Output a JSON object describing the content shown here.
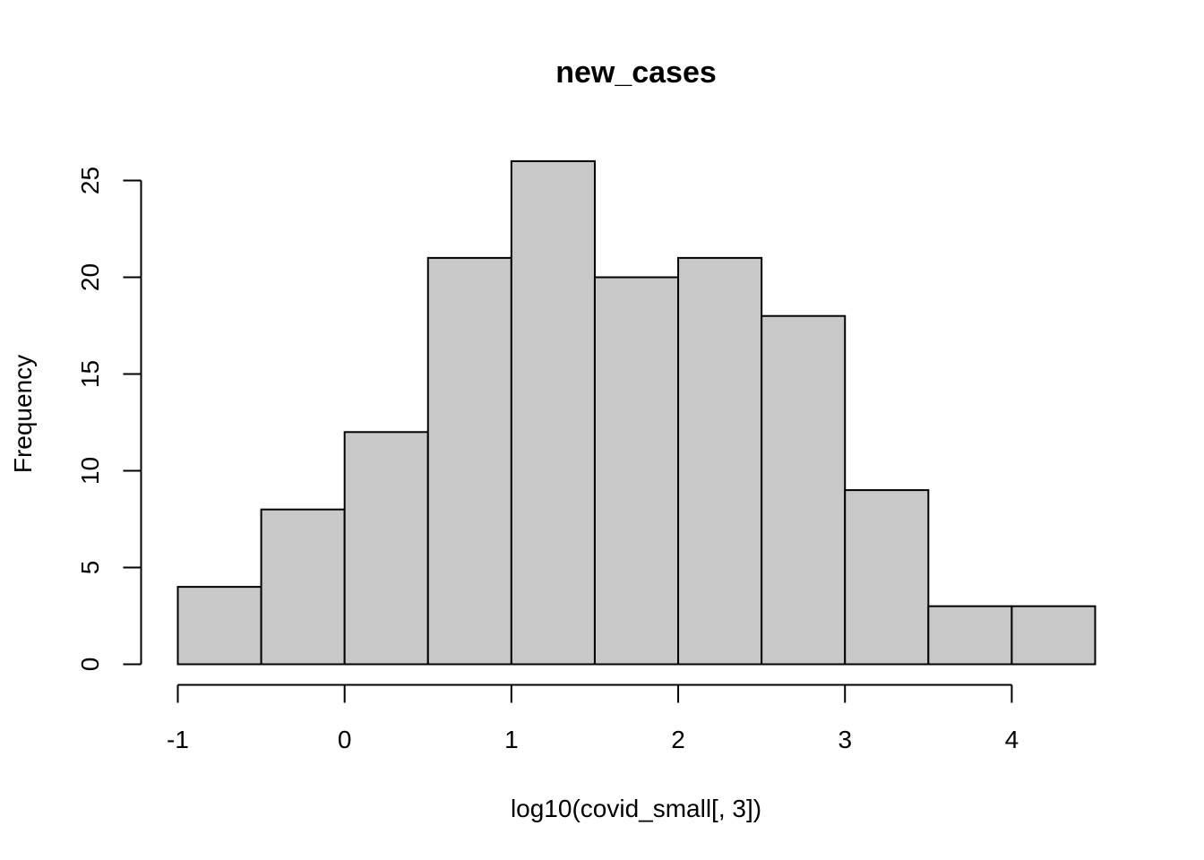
{
  "chart_data": {
    "type": "bar",
    "subtype": "histogram",
    "title": "new_cases",
    "xlabel": "log10(covid_small[, 3])",
    "ylabel": "Frequency",
    "bins": [
      {
        "from": -1.0,
        "to": -0.5,
        "count": 4
      },
      {
        "from": -0.5,
        "to": 0.0,
        "count": 8
      },
      {
        "from": 0.0,
        "to": 0.5,
        "count": 12
      },
      {
        "from": 0.5,
        "to": 1.0,
        "count": 21
      },
      {
        "from": 1.0,
        "to": 1.5,
        "count": 26
      },
      {
        "from": 1.5,
        "to": 2.0,
        "count": 20
      },
      {
        "from": 2.0,
        "to": 2.5,
        "count": 21
      },
      {
        "from": 2.5,
        "to": 3.0,
        "count": 18
      },
      {
        "from": 3.0,
        "to": 3.5,
        "count": 9
      },
      {
        "from": 3.5,
        "to": 4.0,
        "count": 3
      },
      {
        "from": 4.0,
        "to": 4.5,
        "count": 3
      }
    ],
    "x_ticks": [
      -1,
      0,
      1,
      2,
      3,
      4
    ],
    "x_tick_labels": [
      "-1",
      "0",
      "1",
      "2",
      "3",
      "4"
    ],
    "y_ticks": [
      0,
      5,
      10,
      15,
      20,
      25
    ],
    "y_tick_labels": [
      "0",
      "5",
      "10",
      "15",
      "20",
      "25"
    ],
    "xlim": [
      -1,
      4.5
    ],
    "ylim": [
      0,
      26
    ],
    "grid": false,
    "legend": "none",
    "colors": {
      "bar_fill": "#c8c8c8",
      "bar_stroke": "#000000",
      "axis": "#000000",
      "background": "#ffffff"
    }
  }
}
